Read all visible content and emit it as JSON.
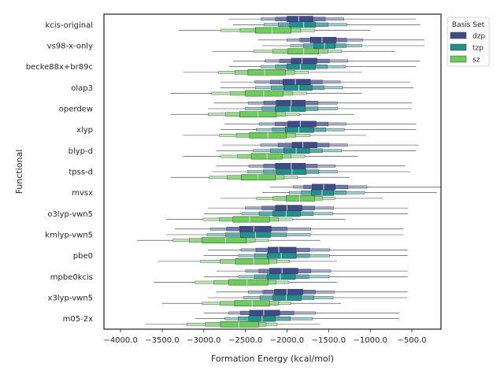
{
  "chart_data": {
    "type": "boxen",
    "title": "",
    "xlabel": "Formation Energy (kcal/mol)",
    "ylabel": "Functional",
    "xlim": [
      -4200,
      -150
    ],
    "xticks": [
      -4000.0,
      -3500.0,
      -3000.0,
      -2500.0,
      -2000.0,
      -1500.0,
      -1000.0,
      -500.0
    ],
    "xtick_labels": [
      "−4000.0",
      "−3500.0",
      "−3000.0",
      "−2500.0",
      "−2000.0",
      "−1500.0",
      "−1000.0",
      "−500.0"
    ],
    "categories": [
      "kcis-original",
      "vs98-x-only",
      "becke88x+br89c",
      "olap3",
      "operdew",
      "xlyp",
      "blyp-d",
      "tpss-d",
      "mvsx",
      "o3lyp-vwn5",
      "kmlyp-vwn5",
      "pbe0",
      "mpbe0kcis",
      "x3lyp-vwn5",
      "m05-2x"
    ],
    "legend": {
      "title": "Basis Set",
      "position": "top-right",
      "entries": [
        "dzp",
        "tzp",
        "sz"
      ]
    },
    "series": [
      {
        "name": "dzp",
        "color": "#3e4a89",
        "median": [
          -1860,
          -1580,
          -1820,
          -1900,
          -1950,
          -1840,
          -1810,
          -1950,
          -1560,
          -2000,
          -2400,
          -2100,
          -2060,
          -2000,
          -2280
        ],
        "q1": [
          -2000,
          -1720,
          -1950,
          -2050,
          -2130,
          -1990,
          -1940,
          -2140,
          -1700,
          -2140,
          -2570,
          -2230,
          -2210,
          -2150,
          -2450
        ],
        "q3": [
          -1690,
          -1410,
          -1640,
          -1720,
          -1780,
          -1650,
          -1640,
          -1780,
          -1420,
          -1820,
          -2190,
          -1890,
          -1870,
          -1810,
          -2090
        ],
        "min": [
          -2700,
          -2350,
          -2650,
          -2800,
          -2880,
          -2750,
          -2780,
          -2850,
          -2200,
          -2950,
          -3350,
          -2950,
          -2850,
          -2850,
          -3000
        ],
        "max": [
          -450,
          -350,
          -400,
          -520,
          -500,
          -450,
          -420,
          -580,
          -150,
          -550,
          -600,
          -550,
          -550,
          -550,
          -650
        ]
      },
      {
        "name": "tzp",
        "color": "#21908d",
        "median": [
          -1800,
          -1550,
          -1840,
          -1860,
          -1960,
          -1860,
          -1890,
          -1940,
          -1580,
          -2010,
          -2380,
          -2070,
          -2080,
          -2010,
          -2300
        ],
        "q1": [
          -1970,
          -1680,
          -2000,
          -2040,
          -2140,
          -2020,
          -2040,
          -2130,
          -1710,
          -2170,
          -2560,
          -2240,
          -2240,
          -2170,
          -2460
        ],
        "q3": [
          -1660,
          -1420,
          -1660,
          -1700,
          -1780,
          -1680,
          -1730,
          -1770,
          -1440,
          -1840,
          -2200,
          -1890,
          -1900,
          -1830,
          -2140
        ],
        "min": [
          -2650,
          -2300,
          -2700,
          -2800,
          -2950,
          -2800,
          -2850,
          -2900,
          -2300,
          -3000,
          -3450,
          -3000,
          -3000,
          -2950,
          -3100
        ],
        "max": [
          -400,
          -350,
          -450,
          -480,
          -500,
          -450,
          -450,
          -520,
          -200,
          -550,
          -600,
          -550,
          -550,
          -550,
          -650
        ]
      },
      {
        "name": "sz",
        "color": "#6ccd5a",
        "median": [
          -2180,
          -1800,
          -2270,
          -2280,
          -2350,
          -2230,
          -2240,
          -2350,
          -1850,
          -2450,
          -2740,
          -2400,
          -2480,
          -2420,
          -2580
        ],
        "q1": [
          -2380,
          -1990,
          -2470,
          -2500,
          -2570,
          -2450,
          -2430,
          -2550,
          -2010,
          -2650,
          -3020,
          -2620,
          -2700,
          -2630,
          -2800
        ],
        "q3": [
          -1950,
          -1620,
          -2020,
          -2050,
          -2130,
          -2010,
          -2060,
          -2140,
          -1670,
          -2210,
          -2490,
          -2220,
          -2230,
          -2210,
          -2340
        ],
        "min": [
          -3300,
          -2900,
          -3250,
          -3400,
          -3400,
          -3250,
          -3250,
          -3400,
          -2800,
          -3450,
          -3800,
          -3550,
          -3600,
          -3500,
          -3700
        ],
        "max": [
          -1000,
          -700,
          -1100,
          -1100,
          -1200,
          -1050,
          -1150,
          -1250,
          -850,
          -1300,
          -1600,
          -1400,
          -1400,
          -1350,
          -1600
        ]
      }
    ]
  }
}
